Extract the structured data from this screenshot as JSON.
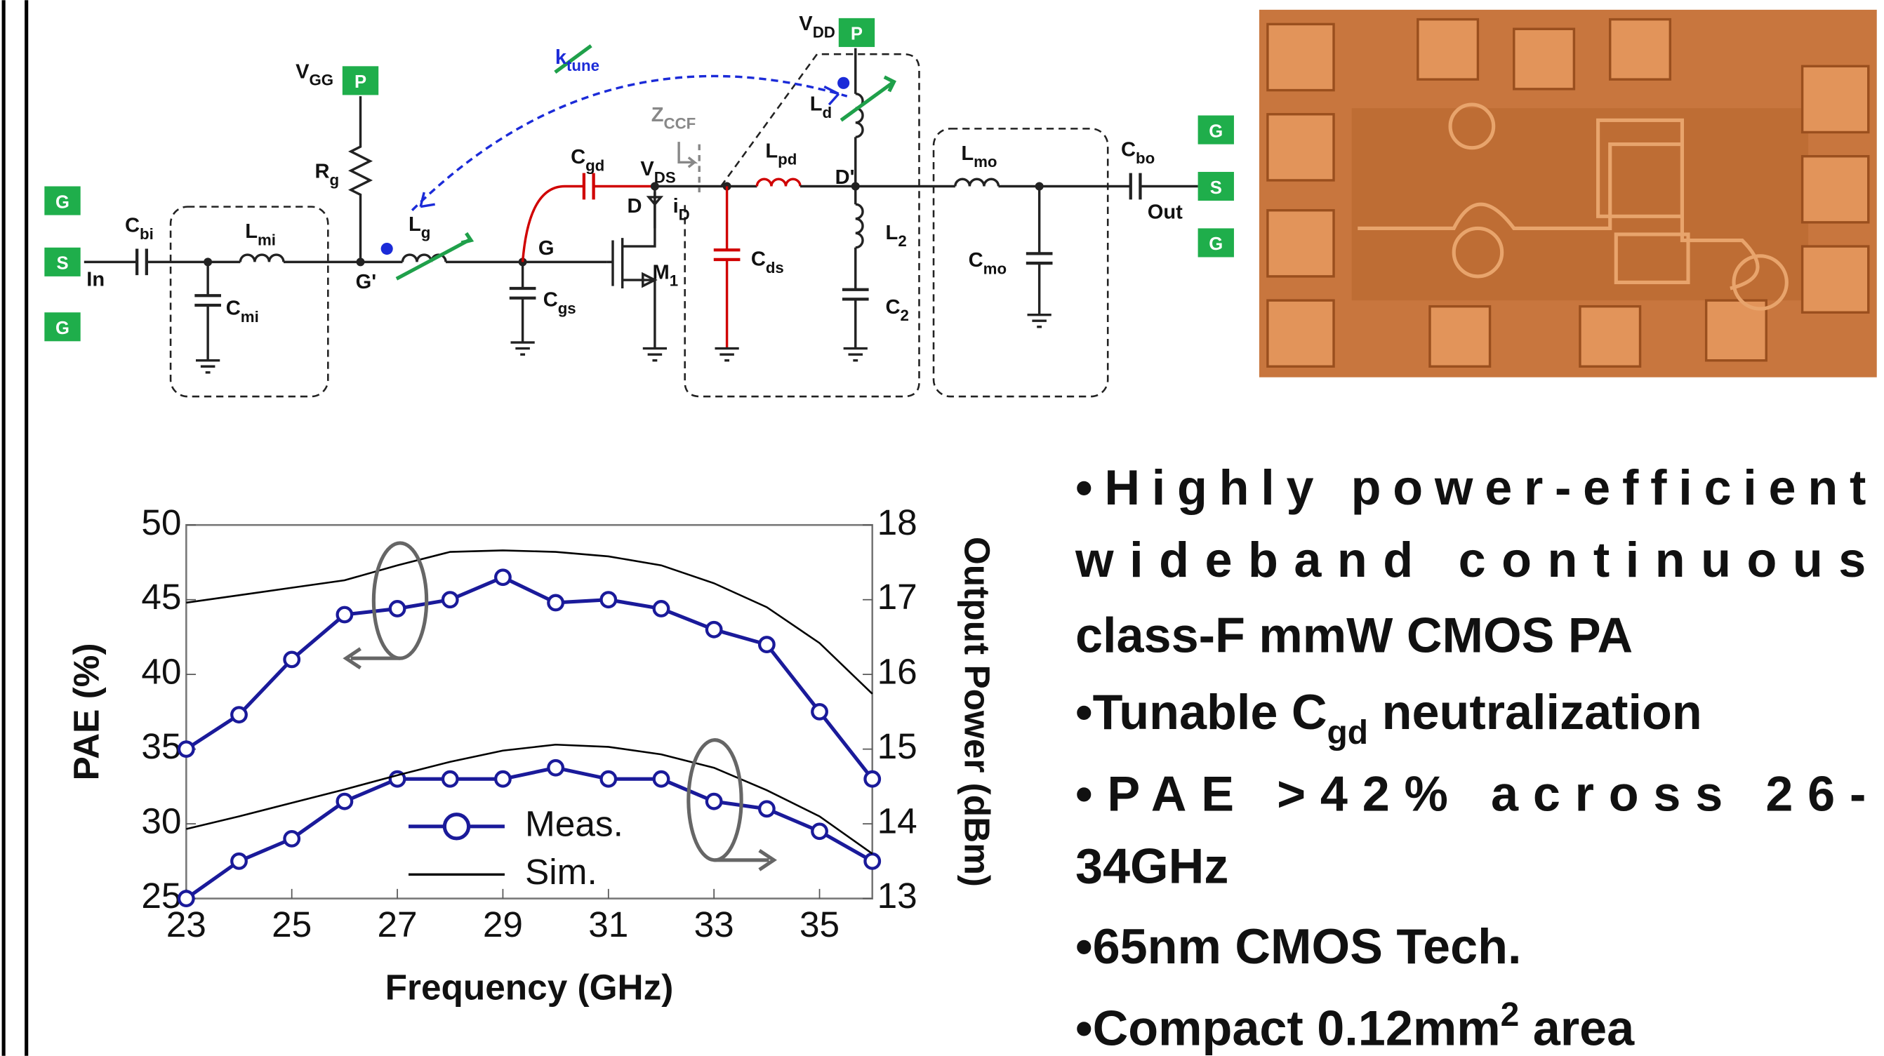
{
  "circuit": {
    "pads": [
      "G",
      "S",
      "G",
      "P",
      "P",
      "G",
      "S",
      "G"
    ],
    "labels": [
      [
        "C",
        "bi"
      ],
      [
        "L",
        "mi"
      ],
      [
        "C",
        "mi"
      ],
      [
        "R",
        "g"
      ],
      [
        "V",
        "GG"
      ],
      [
        "G'"
      ],
      [
        "L",
        "g"
      ],
      [
        "k",
        "tune"
      ],
      [
        "C",
        "gd"
      ],
      [
        "G"
      ],
      [
        "C",
        "gs"
      ],
      [
        "V",
        "DS"
      ],
      [
        "D"
      ],
      [
        "i",
        "D"
      ],
      [
        "M",
        "1"
      ],
      [
        "Z",
        "CCF"
      ],
      [
        "L",
        "pd"
      ],
      [
        "C",
        "ds"
      ],
      [
        "V",
        "DD"
      ],
      [
        "L",
        "d"
      ],
      [
        "D'"
      ],
      [
        "L",
        "2"
      ],
      [
        "C",
        "2"
      ],
      [
        "L",
        "mo"
      ],
      [
        "C",
        "mo"
      ],
      [
        "C",
        "bo"
      ],
      [
        "In"
      ],
      [
        "Out"
      ]
    ]
  },
  "bullets": {
    "b1": [
      "•Highly power-efficient",
      "wideband continuous",
      "class-F mmW CMOS PA"
    ],
    "b2": [
      "•Tunable C",
      "gd",
      " neutralization"
    ],
    "b3": [
      "•PAE >42% across 26-",
      "34GHz"
    ],
    "b4": [
      "•65nm CMOS Tech."
    ],
    "b5": [
      "•Compact 0.12mm",
      "2",
      " area"
    ]
  },
  "chart_data": {
    "type": "line",
    "x": [
      23,
      24,
      25,
      26,
      27,
      28,
      29,
      30,
      31,
      32,
      33,
      34,
      35,
      36
    ],
    "xlim": [
      23,
      36
    ],
    "xticks": [
      23,
      25,
      27,
      29,
      31,
      33,
      35
    ],
    "ylim": [
      25,
      50
    ],
    "yticks": [
      25,
      30,
      35,
      40,
      45,
      50
    ],
    "y2lim": [
      13,
      18
    ],
    "y2ticks": [
      13,
      14,
      15,
      16,
      17,
      18
    ],
    "xlabel": "Frequency (GHz)",
    "ylabel": "PAE  (%)",
    "y2label": "Output Power (dBm)",
    "grid": false,
    "series": [
      {
        "name": "Meas.",
        "color": "#1a1a9a",
        "marker": "circle",
        "values": [
          35,
          37.3,
          41,
          44,
          44.4,
          45,
          46.5,
          44.8,
          45,
          44.4,
          43,
          42,
          37.5,
          33
        ]
      },
      {
        "name": "Sim.",
        "color": "#000000",
        "values": [
          44.8,
          45.3,
          45.8,
          46.3,
          47.3,
          48.2,
          48.3,
          48.2,
          47.9,
          47.3,
          46.1,
          44.5,
          42.1,
          38.7
        ]
      },
      {
        "color": "#1a1a9a",
        "marker": "circle",
        "axis": "y2",
        "values": [
          13,
          13.5,
          13.8,
          14.3,
          14.6,
          14.6,
          14.6,
          14.75,
          14.6,
          14.6,
          14.3,
          14.2,
          13.9,
          13.5
        ]
      },
      {
        "color": "#000000",
        "axis": "y2",
        "values": [
          13.93,
          14.1,
          14.28,
          14.46,
          14.65,
          14.83,
          14.98,
          15.06,
          15.03,
          14.93,
          14.75,
          14.45,
          14.1,
          13.6
        ]
      }
    ]
  }
}
